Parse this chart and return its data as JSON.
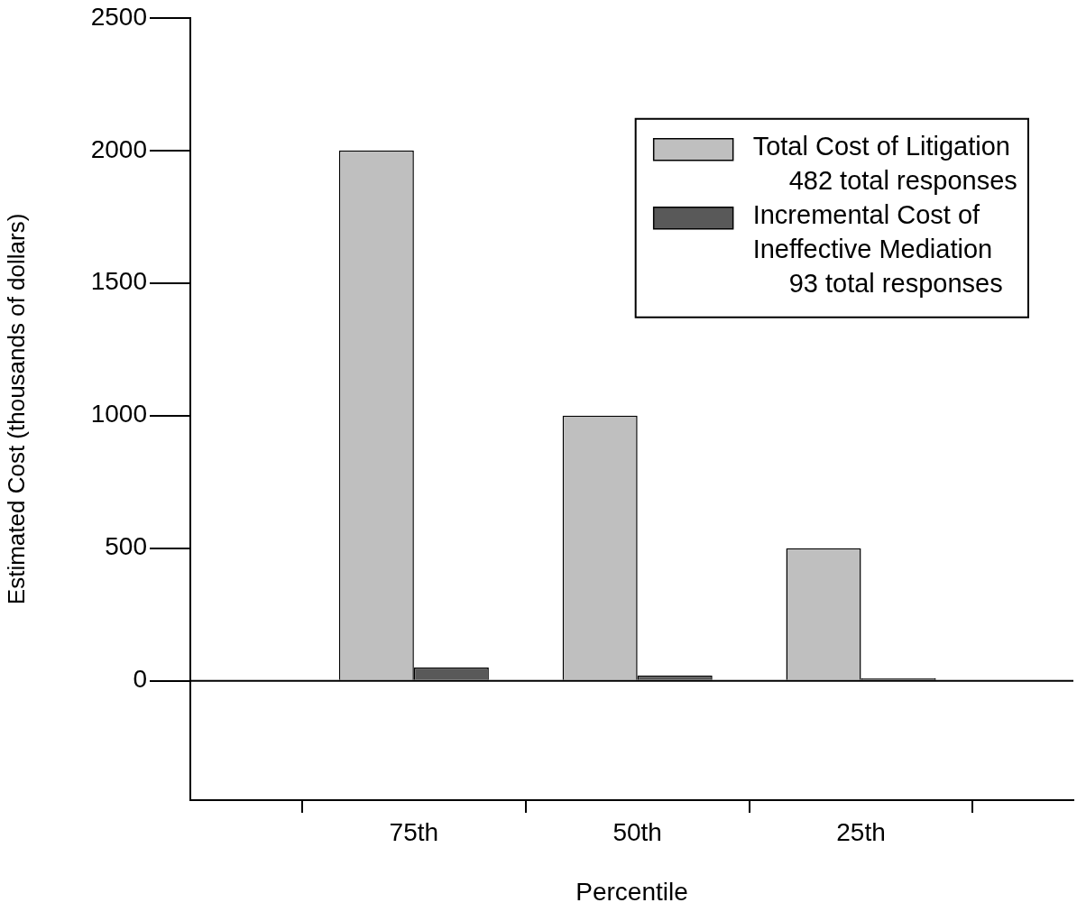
{
  "chart_data": {
    "type": "bar",
    "xlabel": "Percentile",
    "ylabel": "Estimated Cost (thousands of dollars)",
    "categories": [
      "75th",
      "50th",
      "25th"
    ],
    "series": [
      {
        "name": "Total Cost of Litigation\n482 total responses",
        "color": "#bfbfbf",
        "values": [
          2000,
          1000,
          500
        ]
      },
      {
        "name": "Incremental Cost of\nIneffective Mediation\n93 total responses",
        "color": "#595959",
        "values": [
          50,
          20,
          10
        ]
      }
    ],
    "ylim": [
      -450,
      2500
    ],
    "yticks": [
      0,
      500,
      1000,
      1500,
      2000,
      2500
    ],
    "ref_lines": [
      {
        "axis": "y",
        "value": 0,
        "color": "#000000"
      }
    ],
    "legend": "top right"
  }
}
